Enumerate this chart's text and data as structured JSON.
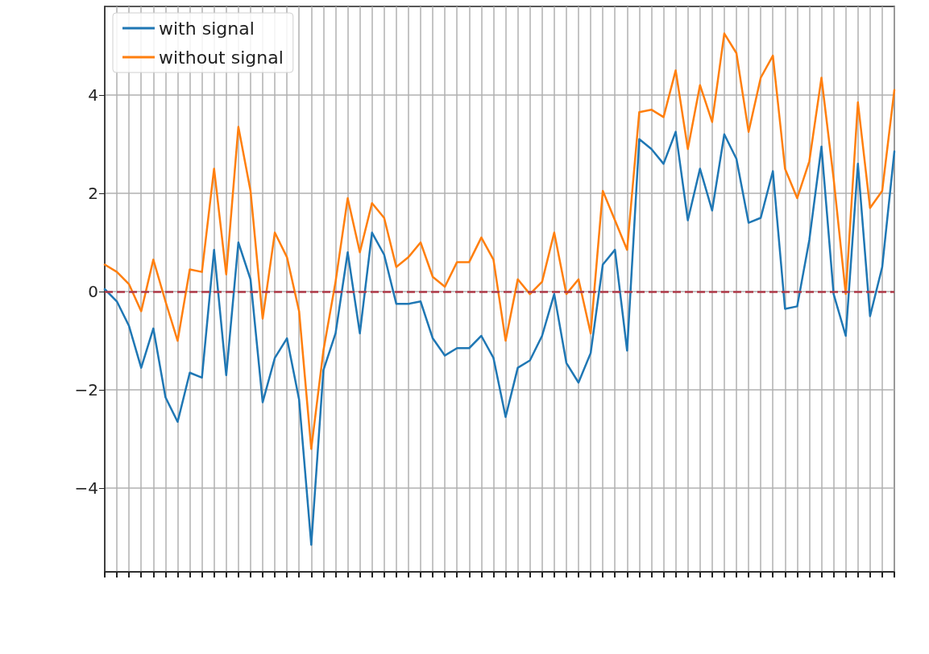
{
  "chart_data": {
    "type": "line",
    "categories": [
      null,
      null,
      null,
      null,
      null,
      null,
      null,
      null,
      null,
      null,
      null,
      null,
      null,
      null,
      null,
      null,
      null,
      null,
      null,
      null,
      null,
      null,
      null,
      null,
      null,
      null,
      null,
      null,
      null,
      null,
      null,
      null,
      null,
      null,
      null,
      null,
      null,
      null,
      null,
      null,
      null,
      null,
      null,
      null,
      null,
      null,
      null,
      null,
      null,
      null,
      null,
      null,
      null,
      null,
      null,
      null,
      null,
      null,
      null,
      null,
      null,
      null,
      null,
      null,
      null,
      null
    ],
    "series": [
      {
        "name": "with signal",
        "color": "#1f77b4",
        "values": [
          0.05,
          -0.2,
          -0.7,
          -1.55,
          -0.75,
          -2.15,
          -2.65,
          -1.65,
          -1.75,
          0.85,
          -1.7,
          1.0,
          0.25,
          -2.25,
          -1.35,
          -0.95,
          -2.2,
          -5.15,
          -1.6,
          -0.85,
          0.8,
          -0.85,
          1.2,
          0.75,
          -0.25,
          -0.25,
          -0.2,
          -0.95,
          -1.3,
          -1.15,
          -1.15,
          -0.9,
          -1.35,
          -2.55,
          -1.55,
          -1.4,
          -0.9,
          -0.05,
          -1.45,
          -1.85,
          -1.25,
          0.55,
          0.85,
          -1.2,
          3.1,
          2.9,
          2.6,
          3.25,
          1.45,
          2.5,
          1.65,
          3.2,
          2.7,
          1.4,
          1.5,
          2.45,
          -0.35,
          -0.3,
          1.05,
          2.95,
          -0.05,
          -0.9,
          2.6,
          -0.5,
          0.5,
          2.85
        ]
      },
      {
        "name": "without signal",
        "color": "#ff7f0e",
        "values": [
          0.55,
          0.4,
          0.15,
          -0.4,
          0.65,
          -0.2,
          -1.0,
          0.45,
          0.4,
          2.5,
          0.35,
          3.35,
          2.05,
          -0.55,
          1.2,
          0.7,
          -0.4,
          -3.2,
          -1.2,
          0.2,
          1.9,
          0.8,
          1.8,
          1.5,
          0.5,
          0.7,
          1.0,
          0.3,
          0.1,
          0.6,
          0.6,
          1.1,
          0.65,
          -1.0,
          0.25,
          -0.05,
          0.2,
          1.2,
          -0.05,
          0.25,
          -0.85,
          2.05,
          1.45,
          0.85,
          3.65,
          3.7,
          3.55,
          4.5,
          2.9,
          4.2,
          3.45,
          5.25,
          4.85,
          3.25,
          4.35,
          4.8,
          2.5,
          1.9,
          2.65,
          4.35,
          2.3,
          -0.05,
          3.85,
          1.7,
          2.05,
          4.1
        ]
      }
    ],
    "ylim": [
      -5.7,
      5.8
    ],
    "yticks": [
      -4,
      -2,
      0,
      2,
      4
    ],
    "grid": true,
    "legend": "top left",
    "marker": "none",
    "line_style": "solid",
    "ref_lines": [
      {
        "axis": "y",
        "value": 0,
        "color": "#b03a48",
        "line_style": "dashed"
      }
    ]
  }
}
